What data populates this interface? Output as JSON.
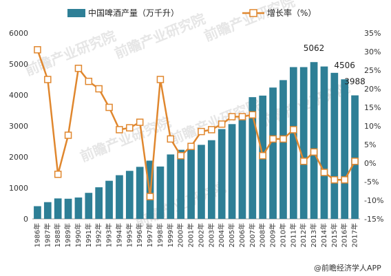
{
  "chart_data": {
    "type": "bar",
    "categories": [
      "1986年",
      "1987年",
      "1988年",
      "1989年",
      "1990年",
      "1991年",
      "1992年",
      "1993年",
      "1994年",
      "1995年",
      "1996年",
      "1997年",
      "1998年",
      "1999年",
      "2000年",
      "2001年",
      "2002年",
      "2003年",
      "2004年",
      "2005年",
      "2006年",
      "2007年",
      "2008年",
      "2009年",
      "2010年",
      "2011年",
      "2012年",
      "2013年",
      "2014年",
      "2015年",
      "2016年",
      "2017年"
    ],
    "series": [
      {
        "name": "中国啤酒产量（万千升）",
        "type": "bar",
        "axis": "left",
        "color": "#2e7f96",
        "values": [
          410,
          540,
          660,
          650,
          690,
          840,
          1020,
          1230,
          1410,
          1550,
          1680,
          1880,
          1690,
          2080,
          2230,
          2260,
          2390,
          2540,
          2900,
          3060,
          3270,
          3930,
          3980,
          4240,
          4480,
          4900,
          4900,
          5062,
          4920,
          4715,
          4506,
          3988
        ]
      },
      {
        "name": "增长率（%）",
        "type": "line",
        "axis": "right",
        "color": "#e0872e",
        "values": [
          30.5,
          22.5,
          -3.0,
          7.5,
          25.5,
          22.0,
          20.0,
          15.0,
          9.0,
          9.5,
          11.0,
          -9.0,
          22.5,
          6.5,
          2.0,
          4.5,
          8.5,
          9.0,
          10.5,
          12.5,
          12.5,
          13.0,
          2.0,
          6.5,
          6.5,
          9.0,
          0.5,
          3.0,
          -2.5,
          -4.5,
          -4.5,
          0.5
        ]
      }
    ],
    "ylim_left": [
      0,
      6000
    ],
    "ylim_right": [
      -15,
      35
    ],
    "yticks_left": [
      "0",
      "1000",
      "2000",
      "3000",
      "4000",
      "5000",
      "6000"
    ],
    "yticks_right": [
      "-15%",
      "-10%",
      "-5%",
      "0%",
      "5%",
      "10%",
      "15%",
      "20%",
      "25%",
      "30%",
      "35%"
    ],
    "annotations": [
      {
        "category": "2013年",
        "text": "5062"
      },
      {
        "category": "2016年",
        "text": "4506"
      },
      {
        "category": "2017年",
        "text": "3988"
      }
    ],
    "legend_position": "top",
    "grid": false
  },
  "watermark_text": "前瞻产业研究院",
  "source_text": "@前瞻经济学人APP"
}
